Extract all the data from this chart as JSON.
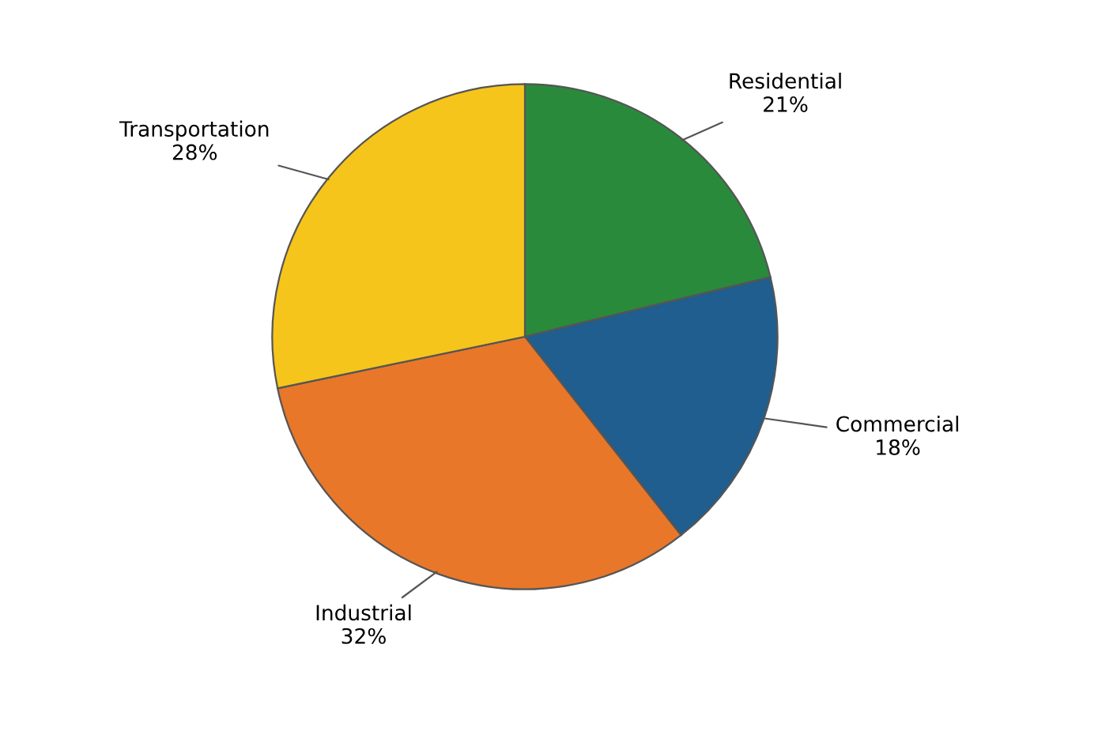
{
  "chart_data": {
    "type": "pie",
    "categories": [
      "Residential",
      "Commercial",
      "Industrial",
      "Transportation"
    ],
    "values": [
      21,
      18,
      32,
      28
    ],
    "colors": [
      "#2a8a3c",
      "#1f5e8e",
      "#e8772a",
      "#f6c51b"
    ],
    "value_labels": [
      "21%",
      "18%",
      "32%",
      "28%"
    ],
    "legend": false
  }
}
